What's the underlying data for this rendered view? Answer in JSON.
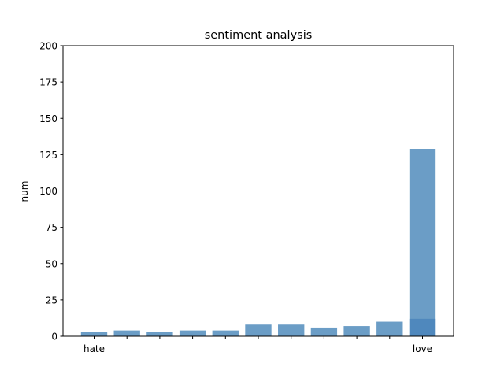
{
  "chart_data": {
    "type": "bar",
    "title": "sentiment analysis",
    "xlabel": "",
    "ylabel": "num",
    "ylim": [
      0,
      200
    ],
    "yticks": [
      0,
      25,
      50,
      75,
      100,
      125,
      150,
      175,
      200
    ],
    "categories": [
      "hate",
      "",
      "",
      "",
      "",
      "",
      "",
      "",
      "",
      "",
      "love"
    ],
    "series": [
      {
        "values": [
          3,
          4,
          3,
          4,
          4,
          8,
          8,
          6,
          7,
          10,
          129
        ],
        "color": "#6b9dc6"
      },
      {
        "values": [
          0,
          0,
          0,
          0,
          0,
          0,
          0,
          0,
          0,
          0,
          12
        ],
        "color": "#4f88bd"
      }
    ],
    "grid": false,
    "legend": "none"
  }
}
